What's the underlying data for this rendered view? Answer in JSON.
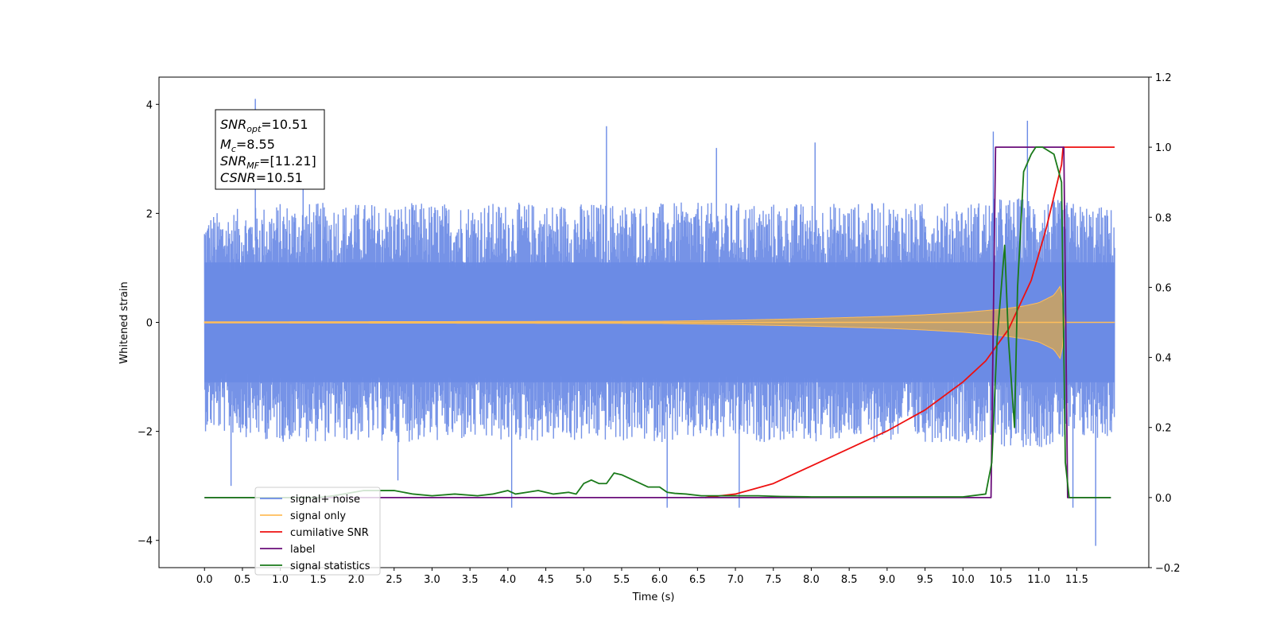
{
  "chart_data": {
    "type": "line",
    "xlabel": "Time (s)",
    "ylabel": "Whitened strain",
    "xlim": [
      -0.6,
      12.45
    ],
    "ylim": [
      -4.5,
      4.5
    ],
    "y2lim": [
      -0.2,
      1.2
    ],
    "x_ticks": [
      0.0,
      0.5,
      1.0,
      1.5,
      2.0,
      2.5,
      3.0,
      3.5,
      4.0,
      4.5,
      5.0,
      5.5,
      6.0,
      6.5,
      7.0,
      7.5,
      8.0,
      8.5,
      9.0,
      9.5,
      10.0,
      10.5,
      11.0,
      11.5
    ],
    "x_tick_labels": [
      "0.0",
      "0.5",
      "1.0",
      "1.5",
      "2.0",
      "2.5",
      "3.0",
      "3.5",
      "4.0",
      "4.5",
      "5.0",
      "5.5",
      "6.0",
      "6.5",
      "7.0",
      "7.5",
      "8.0",
      "8.5",
      "9.0",
      "9.5",
      "10.0",
      "10.5",
      "11.0",
      "11.5"
    ],
    "y_ticks": [
      -4,
      -2,
      0,
      2,
      4
    ],
    "y_tick_labels": [
      "−4",
      "−2",
      "0",
      "2",
      "4"
    ],
    "y2_ticks": [
      -0.2,
      0.0,
      0.2,
      0.4,
      0.6,
      0.8,
      1.0,
      1.2
    ],
    "y2_tick_labels": [
      "−0.2",
      "0.0",
      "0.2",
      "0.4",
      "0.6",
      "0.8",
      "1.0",
      "1.2"
    ],
    "annotation": {
      "snr_opt": {
        "base": "SNR",
        "sub": "opt",
        "value": "=10.51"
      },
      "mc": {
        "base": "M",
        "sub": "c",
        "value": "=8.55"
      },
      "snr_mf": {
        "base": "SNR",
        "sub": "MF",
        "value": "=[11.21]"
      },
      "csnr": {
        "base": "CSNR",
        "value": "=10.51"
      }
    },
    "series": [
      {
        "name": "signal+ noise",
        "axis": "left",
        "color": "#6a8ae5",
        "kind": "noise-band",
        "x_range": [
          0.0,
          12.0
        ],
        "envelope": {
          "x": [
            0.0,
            0.5,
            1.0,
            2.0,
            3.0,
            4.0,
            5.0,
            6.0,
            7.0,
            8.0,
            9.0,
            10.0,
            10.5,
            11.0,
            11.5,
            12.0
          ],
          "upper": [
            2.0,
            2.1,
            2.2,
            2.2,
            2.2,
            2.2,
            2.2,
            2.2,
            2.2,
            2.2,
            2.2,
            2.2,
            2.3,
            2.3,
            2.2,
            2.1
          ],
          "lower": [
            -2.0,
            -2.1,
            -2.2,
            -2.2,
            -2.2,
            -2.2,
            -2.2,
            -2.2,
            -2.2,
            -2.2,
            -2.2,
            -2.2,
            -2.3,
            -2.3,
            -2.2,
            -2.1
          ]
        },
        "spikes": {
          "x": [
            0.35,
            0.67,
            1.3,
            2.55,
            4.05,
            5.3,
            6.1,
            6.75,
            7.05,
            8.05,
            10.4,
            10.85,
            11.45,
            11.75
          ],
          "y": [
            -3.0,
            4.1,
            3.4,
            -2.9,
            -3.4,
            3.6,
            -3.4,
            3.2,
            -3.4,
            3.3,
            3.5,
            3.7,
            -3.4,
            -4.1
          ]
        }
      },
      {
        "name": "signal only",
        "axis": "left",
        "color": "#ffbd5a",
        "kind": "chirp",
        "x_range": [
          0.0,
          12.0
        ],
        "envelope": {
          "x": [
            0.0,
            6.0,
            7.0,
            8.0,
            9.0,
            9.5,
            10.0,
            10.5,
            10.8,
            11.0,
            11.2,
            11.3,
            11.33,
            12.0
          ],
          "amp": [
            0.01,
            0.02,
            0.04,
            0.07,
            0.11,
            0.14,
            0.18,
            0.24,
            0.3,
            0.36,
            0.5,
            0.7,
            0.0,
            0.0
          ]
        }
      },
      {
        "name": "cumilative SNR",
        "axis": "right",
        "color": "#ee1010",
        "x": [
          6.6,
          7.0,
          7.5,
          8.0,
          8.5,
          9.0,
          9.5,
          10.0,
          10.3,
          10.6,
          10.9,
          11.1,
          11.2,
          11.3,
          11.32,
          12.0
        ],
        "y": [
          0.0,
          0.01,
          0.04,
          0.09,
          0.14,
          0.19,
          0.25,
          0.33,
          0.39,
          0.48,
          0.62,
          0.77,
          0.86,
          0.95,
          1.0,
          1.0
        ]
      },
      {
        "name": "label",
        "axis": "right",
        "color": "#6a0d7a",
        "x": [
          0.0,
          10.37,
          10.43,
          11.33,
          11.38,
          11.95
        ],
        "y": [
          0.0,
          0.0,
          1.0,
          1.0,
          0.0,
          0.0
        ]
      },
      {
        "name": "signal statistics",
        "axis": "right",
        "color": "#1a7a1a",
        "x": [
          0.0,
          1.5,
          1.7,
          2.1,
          2.3,
          2.5,
          2.75,
          3.0,
          3.3,
          3.6,
          3.8,
          4.0,
          4.1,
          4.25,
          4.4,
          4.6,
          4.8,
          4.9,
          5.0,
          5.1,
          5.2,
          5.3,
          5.4,
          5.5,
          5.65,
          5.85,
          6.0,
          6.1,
          6.2,
          6.35,
          6.55,
          6.75,
          7.0,
          7.3,
          7.6,
          8.0,
          9.0,
          10.0,
          10.3,
          10.38,
          10.45,
          10.55,
          10.6,
          10.68,
          10.72,
          10.8,
          10.9,
          10.96,
          11.05,
          11.2,
          11.3,
          11.35,
          11.4,
          11.5,
          11.95
        ],
        "y": [
          0.0,
          0.0,
          0.005,
          0.02,
          0.02,
          0.02,
          0.01,
          0.005,
          0.01,
          0.005,
          0.01,
          0.02,
          0.01,
          0.015,
          0.02,
          0.01,
          0.015,
          0.01,
          0.04,
          0.05,
          0.04,
          0.04,
          0.07,
          0.065,
          0.05,
          0.03,
          0.03,
          0.015,
          0.012,
          0.01,
          0.005,
          0.005,
          0.005,
          0.005,
          0.003,
          0.002,
          0.002,
          0.002,
          0.01,
          0.1,
          0.45,
          0.72,
          0.45,
          0.2,
          0.6,
          0.93,
          0.98,
          1.0,
          1.0,
          0.98,
          0.9,
          0.1,
          0.0,
          0.0,
          0.0
        ]
      }
    ],
    "legend": {
      "position": "lower-left",
      "entries": [
        {
          "label": "signal+ noise",
          "color": "#6a8ae5"
        },
        {
          "label": "signal only",
          "color": "#ffbd5a"
        },
        {
          "label": "cumilative SNR",
          "color": "#ee1010"
        },
        {
          "label": "label",
          "color": "#6a0d7a"
        },
        {
          "label": "signal statistics",
          "color": "#1a7a1a"
        }
      ]
    }
  }
}
